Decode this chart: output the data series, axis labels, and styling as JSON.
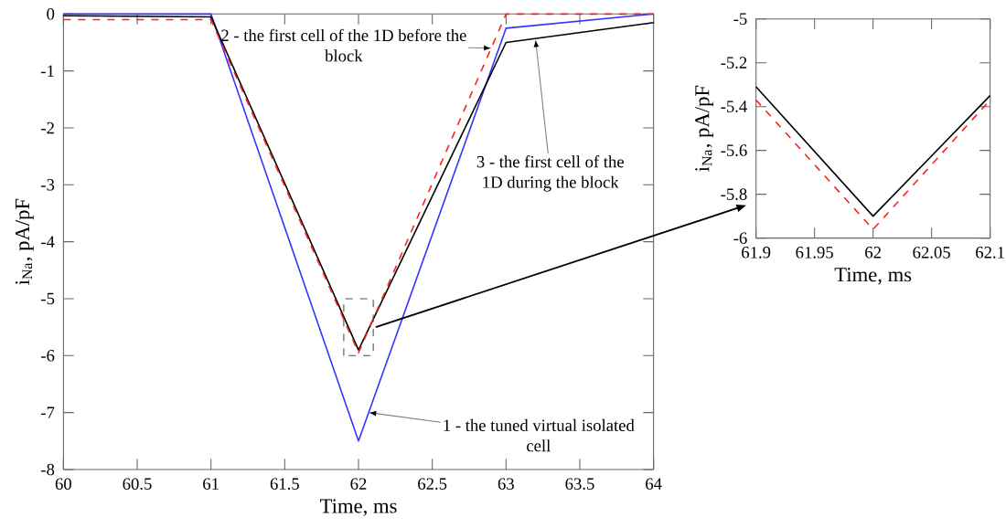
{
  "chart_data": [
    {
      "type": "line",
      "xlabel": "Time, ms",
      "ylabel": "i$_{Na}$, pA/pF",
      "xlim": [
        60,
        64
      ],
      "ylim": [
        -8,
        0
      ],
      "xticks": [
        60,
        60.5,
        61,
        61.5,
        62,
        62.5,
        63,
        63.5,
        64
      ],
      "yticks": [
        -8,
        -7,
        -6,
        -5,
        -4,
        -3,
        -2,
        -1,
        0
      ],
      "grid": false,
      "series": [
        {
          "color": "#3333ff",
          "line_style": "solid",
          "x": [
            60,
            61,
            62,
            63,
            64
          ],
          "values": [
            0,
            0,
            -7.5,
            -0.25,
            0
          ]
        },
        {
          "color": "#000000",
          "line_style": "solid",
          "x": [
            60,
            61,
            62,
            63,
            64
          ],
          "values": [
            -0.03,
            -0.05,
            -5.9,
            -0.5,
            -0.15
          ]
        },
        {
          "color": "#ff2020",
          "line_style": "dashed",
          "x": [
            60,
            61,
            62,
            63,
            64
          ],
          "values": [
            -0.1,
            -0.1,
            -5.95,
            0,
            0
          ]
        }
      ],
      "annotations": [
        {
          "text": "1 - the tuned virtual isolated cell",
          "x": 62.07,
          "y": -7.0
        },
        {
          "text": "2 - the first cell of the 1D before the block",
          "x": 62.9,
          "y": -0.6
        },
        {
          "text": "3 - the first cell of the 1D during the block",
          "x": 63.2,
          "y": -0.45
        }
      ]
    },
    {
      "type": "line",
      "xlabel": "Time, ms",
      "ylabel": "i$_{Na}$, pA/pF",
      "xlim": [
        61.9,
        62.1
      ],
      "ylim": [
        -6,
        -5
      ],
      "xticks": [
        61.9,
        61.95,
        62,
        62.05,
        62.1
      ],
      "yticks": [
        -6,
        -5.8,
        -5.6,
        -5.4,
        -5.2,
        -5
      ],
      "grid": false,
      "series": [
        {
          "color": "#000000",
          "line_style": "solid",
          "x": [
            61.9,
            62,
            62.1
          ],
          "values": [
            -5.31,
            -5.9,
            -5.35
          ]
        },
        {
          "color": "#ff2020",
          "line_style": "dashed",
          "x": [
            61.9,
            62,
            62.1
          ],
          "values": [
            -5.37,
            -5.96,
            -5.37
          ]
        }
      ]
    }
  ]
}
